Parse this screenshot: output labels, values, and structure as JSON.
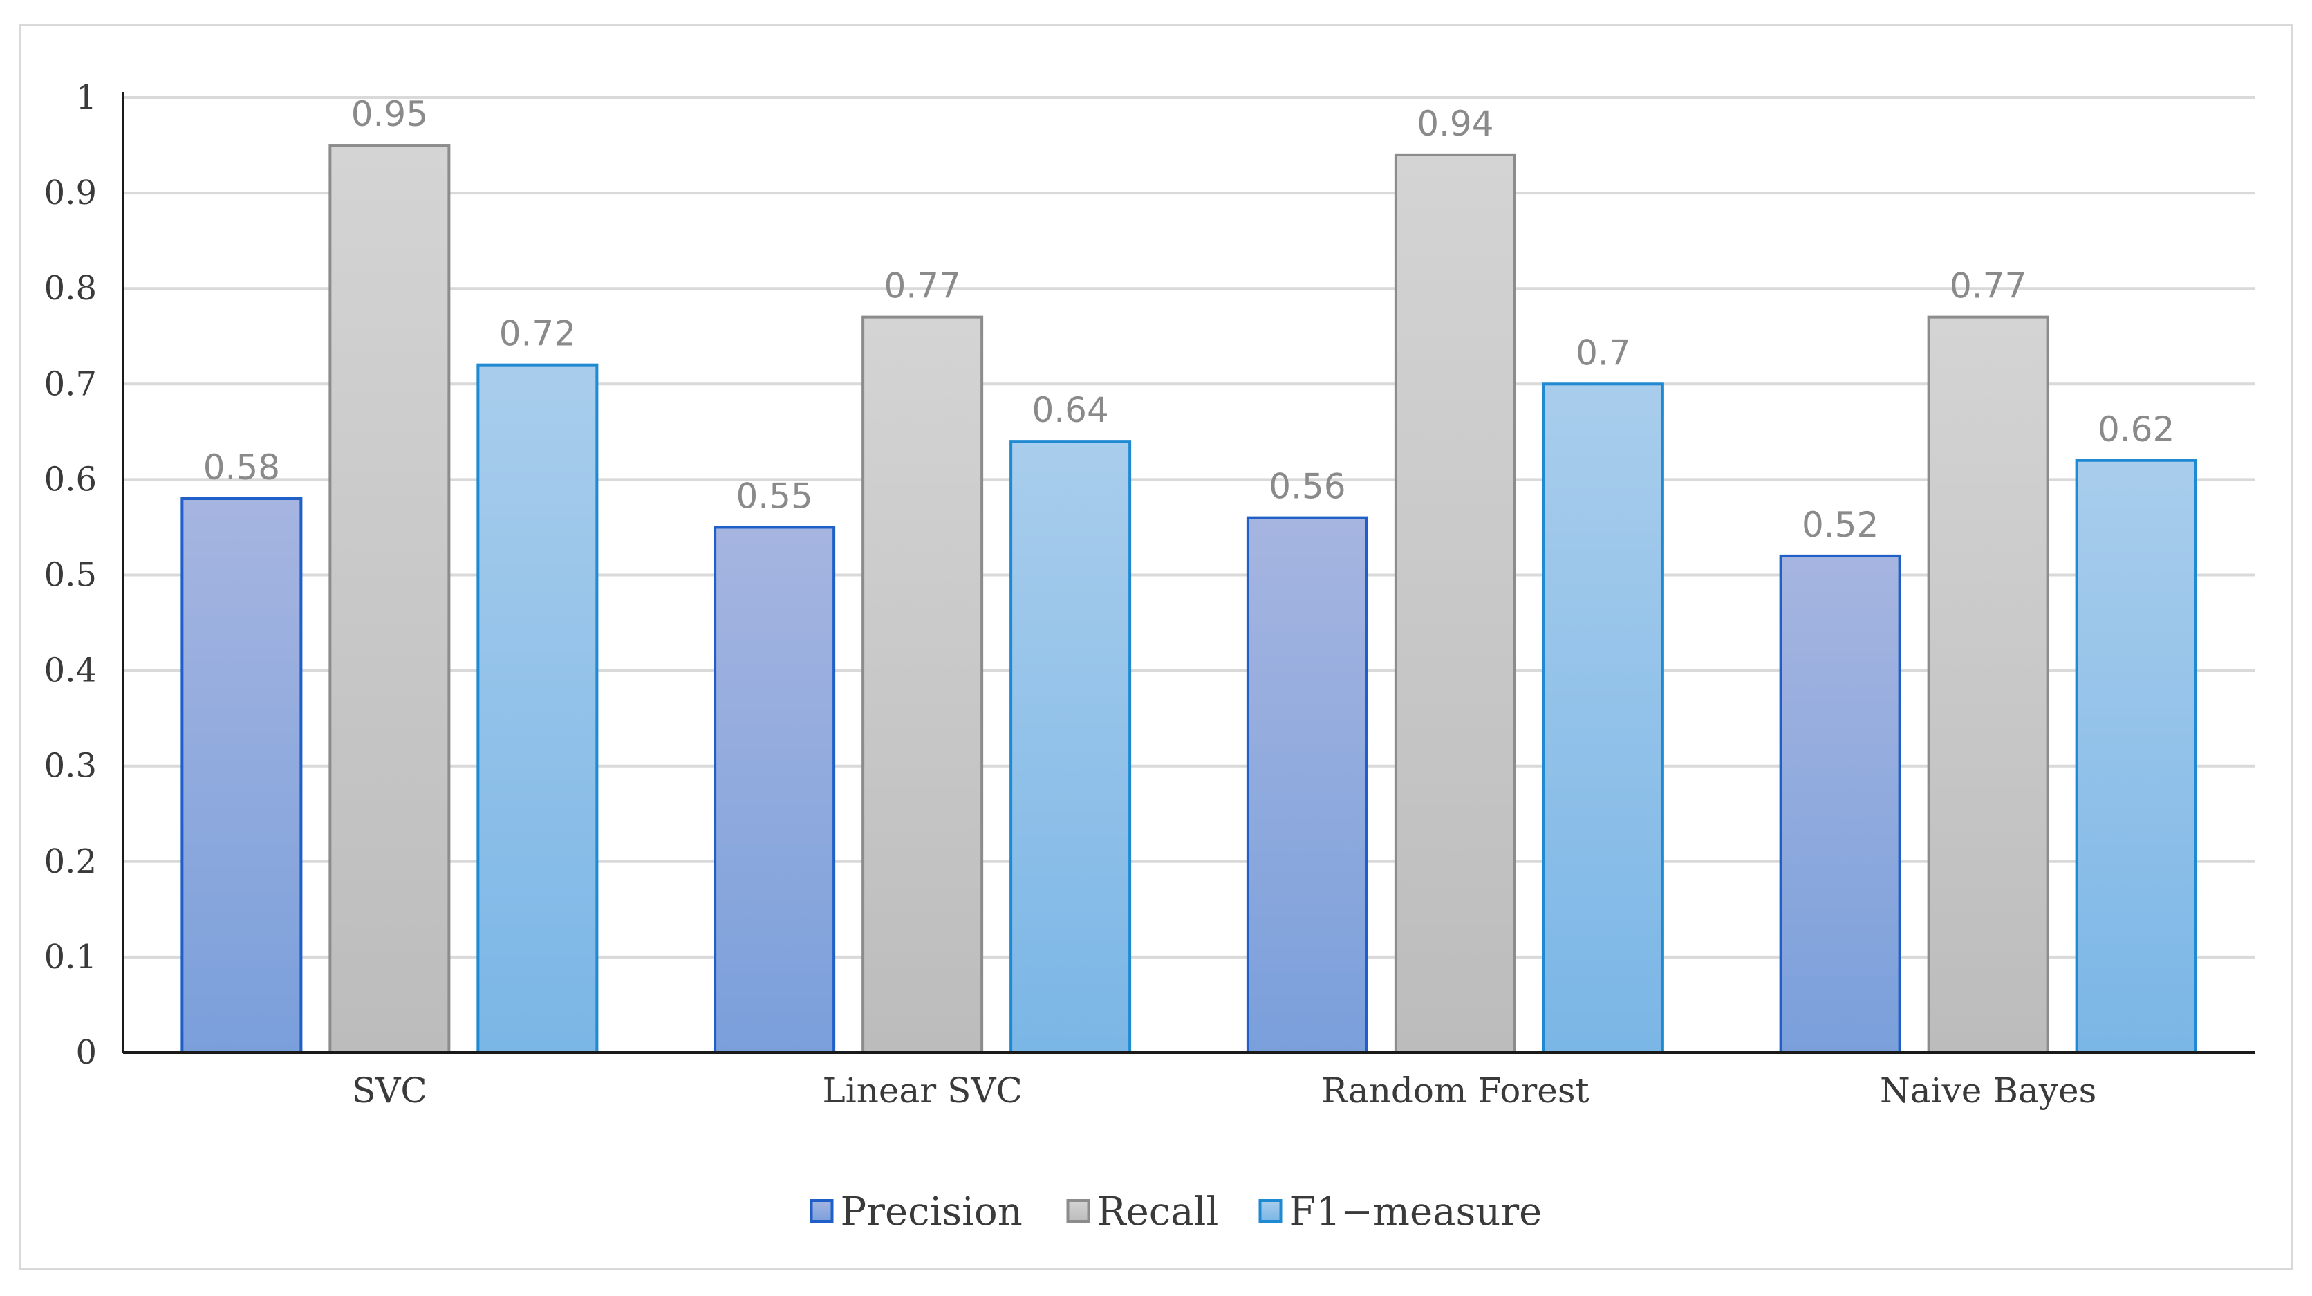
{
  "chart_data": {
    "type": "bar",
    "categories": [
      "SVC",
      "Linear SVC",
      "Random Forest",
      "Naive Bayes"
    ],
    "series": [
      {
        "name": "Precision",
        "values": [
          0.58,
          0.55,
          0.56,
          0.52
        ],
        "color_top": "#a6b5e0",
        "color_bottom": "#7a9fdb",
        "stroke": "#1f5fc7"
      },
      {
        "name": "Recall",
        "values": [
          0.95,
          0.77,
          0.94,
          0.77
        ],
        "color_top": "#d4d4d4",
        "color_bottom": "#bcbcbc",
        "stroke": "#8c8c8c"
      },
      {
        "name": "F1-measure",
        "values": [
          0.72,
          0.64,
          0.7,
          0.62
        ],
        "color_top": "#a9cdec",
        "color_bottom": "#7ab6e6",
        "stroke": "#1f8ad1"
      }
    ],
    "data_labels": [
      [
        "0.58",
        "0.55",
        "0.56",
        "0.52"
      ],
      [
        "0.95",
        "0.77",
        "0.94",
        "0.77"
      ],
      [
        "0.72",
        "0.64",
        "0.7",
        "0.62"
      ]
    ],
    "ylim": [
      0,
      1
    ],
    "yticks": [
      0,
      0.1,
      0.2,
      0.3,
      0.4,
      0.5,
      0.6,
      0.7,
      0.8,
      0.9,
      1
    ],
    "ytick_labels": [
      "0",
      "0.1",
      "0.2",
      "0.3",
      "0.4",
      "0.5",
      "0.6",
      "0.7",
      "0.8",
      "0.9",
      "1"
    ],
    "title": "",
    "xlabel": "",
    "ylabel": "",
    "grid": true,
    "legend_position": "bottom-center",
    "legend_labels": [
      "Precision",
      "Recall",
      "F1−measure"
    ]
  }
}
